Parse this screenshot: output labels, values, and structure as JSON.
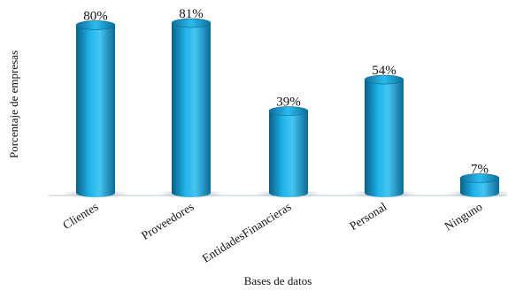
{
  "chart_data": {
    "type": "bar",
    "title": "",
    "xlabel": "Bases de datos",
    "ylabel": "Porcentaje de empresas",
    "categories": [
      "Clientes",
      "Proveedores",
      "EntidadesFinancieras",
      "Personal",
      "Ninguno"
    ],
    "values": [
      80,
      81,
      39,
      54,
      7
    ],
    "value_labels": [
      "80%",
      "81%",
      "39%",
      "54%",
      "7%"
    ],
    "ylim": [
      0,
      100
    ],
    "grid": false,
    "legend": "none",
    "bar_color": "#1aa6dc",
    "bar_style": "3d-cylinder"
  }
}
